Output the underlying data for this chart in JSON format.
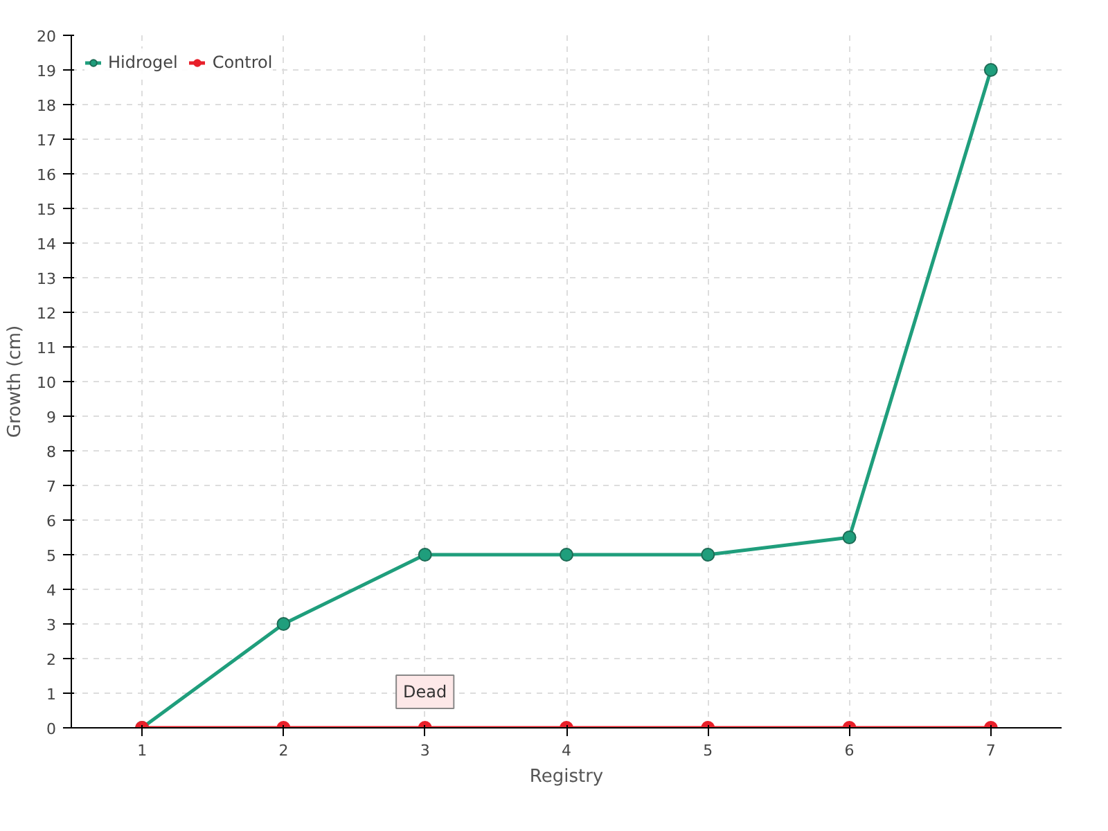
{
  "chart_data": {
    "type": "line",
    "xlabel": "Registry",
    "ylabel": "Growth (cm)",
    "categories": [
      "1",
      "2",
      "3",
      "4",
      "5",
      "6",
      "7"
    ],
    "series": [
      {
        "name": "Hidrogel",
        "color": "#1f9e7c",
        "values": [
          0,
          3,
          5,
          5,
          5,
          5.5,
          19
        ]
      },
      {
        "name": "Control",
        "color": "#e8202a",
        "values": [
          0,
          0,
          0,
          0,
          0,
          0,
          0
        ]
      }
    ],
    "ylim": [
      0,
      20
    ],
    "yticks": [
      0,
      1,
      2,
      3,
      4,
      5,
      6,
      7,
      8,
      9,
      10,
      11,
      12,
      13,
      14,
      15,
      16,
      17,
      18,
      19,
      20
    ],
    "annotations": [
      {
        "text": "Dead",
        "x": "3",
        "y": 0
      }
    ],
    "grid": true,
    "legend": "top left",
    "marker": "circle",
    "line_style": "solid"
  }
}
